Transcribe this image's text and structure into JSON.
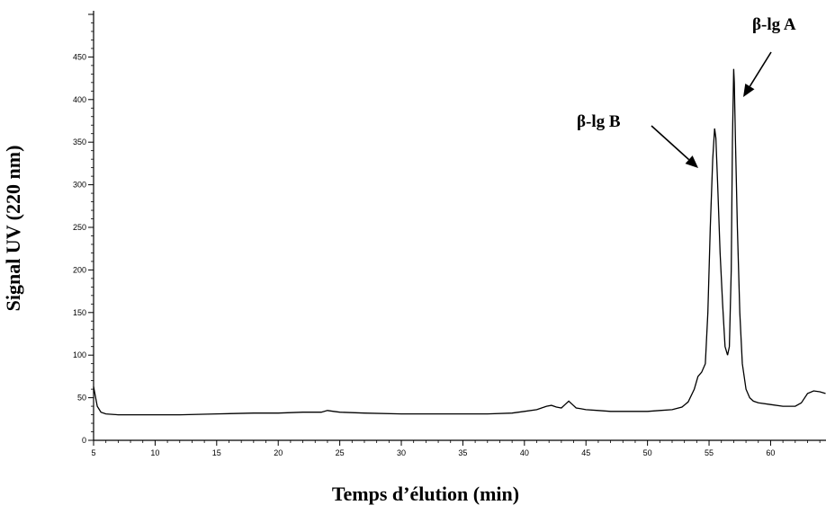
{
  "chart_data": {
    "type": "line",
    "title": "",
    "xlabel": "Temps d’élution (min)",
    "ylabel": "Signal UV (220 nm)",
    "xlim": [
      5,
      64.5
    ],
    "ylim": [
      0,
      500
    ],
    "x_ticks": [
      "5",
      "10",
      "15",
      "20",
      "25",
      "30",
      "35",
      "40",
      "45",
      "50",
      "55",
      "60"
    ],
    "y_ticks": [
      "0",
      "50",
      "100",
      "150",
      "200",
      "250",
      "300",
      "350",
      "400",
      "450"
    ],
    "grid": false,
    "legend": "none",
    "annotations": [
      {
        "label": "β-lg B",
        "x": 55.5,
        "y": 320
      },
      {
        "label": "β-lg A",
        "x": 57.0,
        "y": 400
      }
    ],
    "series": [
      {
        "x": [
          5.0,
          5.1,
          5.3,
          5.6,
          6.0,
          7.0,
          8.0,
          10.0,
          12.0,
          15.0,
          18.0,
          20.0,
          22.0,
          23.5,
          24.0,
          24.5,
          25.0,
          27.0,
          30.0,
          33.0,
          35.0,
          37.0,
          39.0,
          40.0,
          41.0,
          41.8,
          42.2,
          42.6,
          43.0,
          43.3,
          43.6,
          43.9,
          44.2,
          44.6,
          45.0,
          46.0,
          47.0,
          48.0,
          49.0,
          50.0,
          51.0,
          52.0,
          52.8,
          53.3,
          53.8,
          54.1,
          54.4,
          54.7,
          54.9,
          55.1,
          55.3,
          55.45,
          55.55,
          55.7,
          55.9,
          56.1,
          56.3,
          56.5,
          56.65,
          56.8,
          56.9,
          57.0,
          57.05,
          57.15,
          57.3,
          57.5,
          57.7,
          58.0,
          58.3,
          58.6,
          59.0,
          60.0,
          61.0,
          62.0,
          62.5,
          63.0,
          63.5,
          64.0,
          64.5
        ],
        "y": [
          63,
          55,
          40,
          33,
          31,
          30,
          30,
          30,
          30,
          31,
          32,
          32,
          33,
          33,
          35,
          34,
          33,
          32,
          31,
          31,
          31,
          31,
          32,
          34,
          36,
          40,
          41,
          39,
          38,
          42,
          46,
          42,
          38,
          37,
          36,
          35,
          34,
          34,
          34,
          34,
          35,
          36,
          39,
          45,
          60,
          75,
          80,
          90,
          150,
          250,
          330,
          366,
          355,
          300,
          220,
          160,
          110,
          100,
          110,
          200,
          350,
          436,
          420,
          350,
          250,
          150,
          90,
          60,
          50,
          46,
          44,
          42,
          40,
          40,
          44,
          55,
          58,
          57,
          55
        ]
      }
    ]
  }
}
